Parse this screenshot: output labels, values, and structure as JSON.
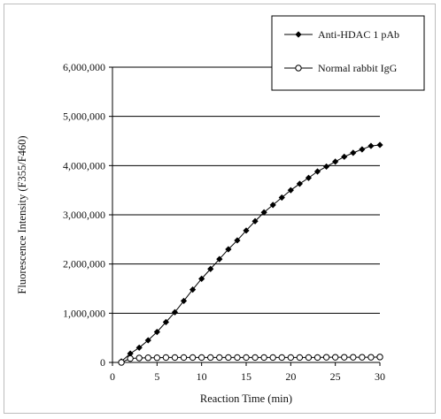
{
  "chart_data": {
    "type": "line",
    "xlabel": "Reaction Time (min)",
    "ylabel": "Fluorescence Intensity (F355/F460)",
    "xlim": [
      0,
      30
    ],
    "ylim": [
      0,
      6000000
    ],
    "x_ticks": [
      0,
      5,
      10,
      15,
      20,
      25,
      30
    ],
    "y_ticks": [
      0,
      1000000,
      2000000,
      3000000,
      4000000,
      5000000,
      6000000
    ],
    "x_tick_labels": [
      "0",
      "5",
      "10",
      "15",
      "20",
      "25",
      "30"
    ],
    "y_tick_labels": [
      "0",
      "1,000,000",
      "2,000,000",
      "3,000,000",
      "4,000,000",
      "5,000,000",
      "6,000,000"
    ],
    "grid": "horizontal",
    "legend_position": "top-right",
    "series": [
      {
        "name": "Anti-HDAC 1 pAb",
        "marker": "filled-diamond",
        "color": "#000000",
        "x": [
          1,
          2,
          3,
          4,
          5,
          6,
          7,
          8,
          9,
          10,
          11,
          12,
          13,
          14,
          15,
          16,
          17,
          18,
          19,
          20,
          21,
          22,
          23,
          24,
          25,
          26,
          27,
          28,
          29,
          30
        ],
        "values": [
          20000,
          180000,
          300000,
          450000,
          620000,
          820000,
          1020000,
          1250000,
          1480000,
          1700000,
          1900000,
          2100000,
          2300000,
          2480000,
          2680000,
          2870000,
          3050000,
          3200000,
          3350000,
          3500000,
          3630000,
          3750000,
          3880000,
          3980000,
          4080000,
          4180000,
          4260000,
          4330000,
          4400000,
          4420000
        ]
      },
      {
        "name": "Normal rabbit IgG",
        "marker": "open-circle",
        "color": "#000000",
        "x": [
          1,
          2,
          3,
          4,
          5,
          6,
          7,
          8,
          9,
          10,
          11,
          12,
          13,
          14,
          15,
          16,
          17,
          18,
          19,
          20,
          21,
          22,
          23,
          24,
          25,
          26,
          27,
          28,
          29,
          30
        ],
        "values": [
          0,
          80000,
          90000,
          95000,
          95000,
          100000,
          100000,
          100000,
          100000,
          100000,
          100000,
          100000,
          100000,
          100000,
          100000,
          100000,
          100000,
          100000,
          100000,
          100000,
          100000,
          100000,
          100000,
          105000,
          105000,
          105000,
          105000,
          105000,
          105000,
          110000
        ]
      }
    ],
    "legend": [
      {
        "label": "Anti-HDAC 1 pAb"
      },
      {
        "label": "Normal rabbit IgG"
      }
    ]
  }
}
